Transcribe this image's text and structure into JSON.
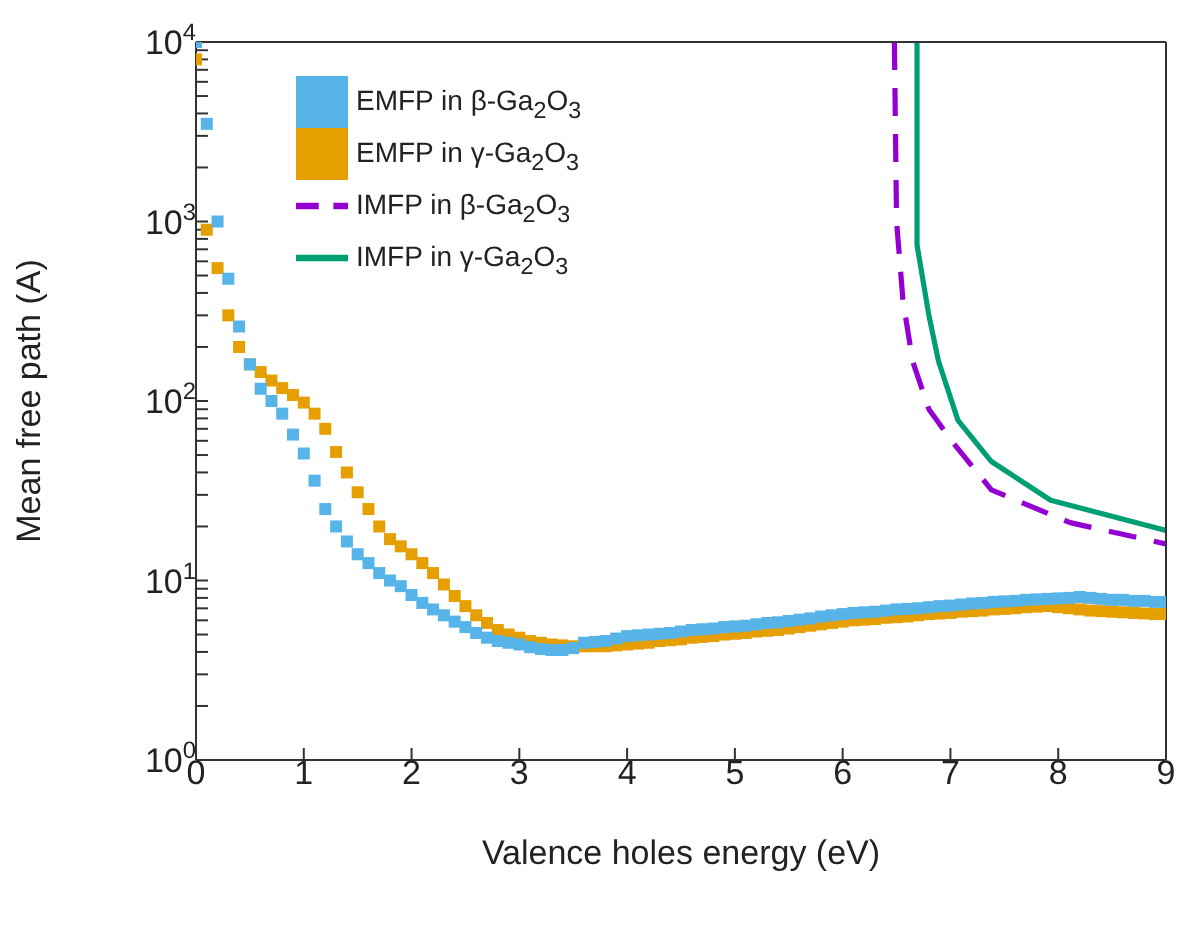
{
  "chart_data": {
    "type": "scatter",
    "xlabel": "Valence holes energy (eV)",
    "ylabel": "Mean free path (A)",
    "xlim": [
      0,
      9
    ],
    "xticks": [
      0,
      1,
      2,
      3,
      4,
      5,
      6,
      7,
      8,
      9
    ],
    "ylim": [
      1,
      10000
    ],
    "log": "y",
    "yticks": [
      {
        "value": 1,
        "label": "10$^{0}$"
      },
      {
        "value": 2,
        "label": null
      },
      {
        "value": 3,
        "label": null
      },
      {
        "value": 4,
        "label": null
      },
      {
        "value": 5,
        "label": null
      },
      {
        "value": 6,
        "label": null
      },
      {
        "value": 7,
        "label": null
      },
      {
        "value": 8,
        "label": null
      },
      {
        "value": 9,
        "label": null
      },
      {
        "value": 10,
        "label": "10$^{1}$"
      },
      {
        "value": 20,
        "label": null
      },
      {
        "value": 30,
        "label": null
      },
      {
        "value": 40,
        "label": null
      },
      {
        "value": 50,
        "label": null
      },
      {
        "value": 60,
        "label": null
      },
      {
        "value": 70,
        "label": null
      },
      {
        "value": 80,
        "label": null
      },
      {
        "value": 90,
        "label": null
      },
      {
        "value": 100,
        "label": "10$^{2}$"
      },
      {
        "value": 200,
        "label": null
      },
      {
        "value": 300,
        "label": null
      },
      {
        "value": 400,
        "label": null
      },
      {
        "value": 500,
        "label": null
      },
      {
        "value": 600,
        "label": null
      },
      {
        "value": 700,
        "label": null
      },
      {
        "value": 800,
        "label": null
      },
      {
        "value": 900,
        "label": null
      },
      {
        "value": 1000,
        "label": "10$^{3}$"
      },
      {
        "value": 2000,
        "label": null
      },
      {
        "value": 3000,
        "label": null
      },
      {
        "value": 4000,
        "label": null
      },
      {
        "value": 5000,
        "label": null
      },
      {
        "value": 6000,
        "label": null
      },
      {
        "value": 7000,
        "label": null
      },
      {
        "value": 8000,
        "label": null
      },
      {
        "value": 9000,
        "label": null
      },
      {
        "value": 10000,
        "label": "10$^{4}$"
      }
    ],
    "legend": "top left",
    "x": [
      0,
      0.1,
      0.2,
      0.3,
      0.4,
      0.5,
      0.6,
      0.7,
      0.8,
      0.9,
      1,
      1.1,
      1.2,
      1.3,
      1.4,
      1.5,
      1.6,
      1.7,
      1.8,
      1.9,
      2,
      2.1,
      2.2,
      2.3,
      2.4,
      2.5,
      2.6,
      2.7,
      2.8,
      2.9,
      3,
      3.1,
      3.2,
      3.3,
      3.4,
      3.5,
      3.6,
      3.7,
      3.8,
      3.9,
      4,
      4.1,
      4.2,
      4.3,
      4.4,
      4.5,
      4.6,
      4.7,
      4.8,
      4.9,
      5,
      5.1,
      5.2,
      5.3,
      5.4,
      5.5,
      5.6,
      5.7,
      5.8,
      5.9,
      6,
      6.1,
      6.2,
      6.3,
      6.4,
      6.5,
      6.6,
      6.7,
      6.8,
      6.9,
      7,
      7.1,
      7.2,
      7.3,
      7.4,
      7.5,
      7.6,
      7.7,
      7.8,
      7.9,
      8,
      8.1,
      8.2,
      8.3,
      8.4,
      8.5,
      8.6,
      8.7,
      8.8,
      8.9,
      9
    ],
    "series": [
      {
        "name": "IMFP in β-Ga$_{2}$O$_{3}$",
        "type": "line",
        "color": "#9400d3",
        "line_style": "dashed",
        "marker": "none",
        "x": [
          6.48,
          6.5,
          6.56,
          6.65,
          6.8,
          7.01,
          7.38,
          8.11,
          9
        ],
        "values": [
          10000,
          1000,
          360,
          166,
          90,
          60,
          32,
          21,
          16
        ]
      },
      {
        "name": "IMFP in γ-Ga$_{2}$O$_{3}$",
        "type": "line",
        "color": "#009e73",
        "line_style": "solid",
        "marker": "none",
        "x": [
          6.69,
          6.69,
          6.8,
          6.89,
          7.07,
          7.38,
          7.93,
          9
        ],
        "values": [
          10000,
          740,
          300,
          166,
          78,
          46,
          28,
          19
        ]
      },
      {
        "name": "EMFP in γ-Ga$_{2}$O$_{3}$",
        "color": "#e69f00",
        "marker": "square",
        "values": [
          8000,
          900,
          550,
          300,
          200,
          160,
          145,
          130,
          118,
          108,
          98,
          85,
          70,
          52,
          40,
          31,
          25,
          20,
          17,
          15.5,
          14,
          12.5,
          11,
          9.5,
          8.2,
          7.2,
          6.4,
          5.8,
          5.3,
          5,
          4.8,
          4.6,
          4.5,
          4.4,
          4.35,
          4.3,
          4.3,
          4.3,
          4.3,
          4.35,
          4.4,
          4.45,
          4.5,
          4.6,
          4.65,
          4.7,
          4.8,
          4.85,
          4.9,
          5,
          5.05,
          5.1,
          5.2,
          5.25,
          5.3,
          5.4,
          5.5,
          5.6,
          5.7,
          5.8,
          5.9,
          6,
          6.05,
          6.1,
          6.2,
          6.25,
          6.3,
          6.4,
          6.5,
          6.55,
          6.6,
          6.7,
          6.75,
          6.8,
          6.9,
          6.95,
          7,
          7.1,
          7.15,
          7.2,
          7.1,
          7,
          6.9,
          6.8,
          6.75,
          6.7,
          6.65,
          6.6,
          6.55,
          6.5,
          6.5
        ]
      },
      {
        "name": "EMFP in β-Ga$_{2}$O$_{3}$",
        "color": "#56b4e9",
        "marker": "square",
        "values": [
          10000,
          3500,
          1000,
          480,
          260,
          160,
          117,
          100,
          85,
          65,
          51,
          36,
          25,
          20,
          16.5,
          14,
          12.5,
          11,
          10,
          9.3,
          8.3,
          7.5,
          6.9,
          6.4,
          5.9,
          5.5,
          5.1,
          4.8,
          4.6,
          4.5,
          4.4,
          4.25,
          4.15,
          4.1,
          4.1,
          4.2,
          4.5,
          4.55,
          4.6,
          4.75,
          4.9,
          4.95,
          5,
          5.05,
          5.1,
          5.2,
          5.3,
          5.35,
          5.4,
          5.5,
          5.55,
          5.6,
          5.7,
          5.8,
          5.85,
          5.95,
          6.05,
          6.15,
          6.3,
          6.4,
          6.5,
          6.6,
          6.65,
          6.7,
          6.8,
          6.9,
          6.95,
          7,
          7.1,
          7.2,
          7.25,
          7.35,
          7.45,
          7.5,
          7.6,
          7.65,
          7.7,
          7.8,
          7.85,
          7.9,
          7.95,
          8,
          8.1,
          8,
          7.9,
          7.8,
          7.8,
          7.7,
          7.7,
          7.6,
          7.6
        ]
      }
    ]
  }
}
